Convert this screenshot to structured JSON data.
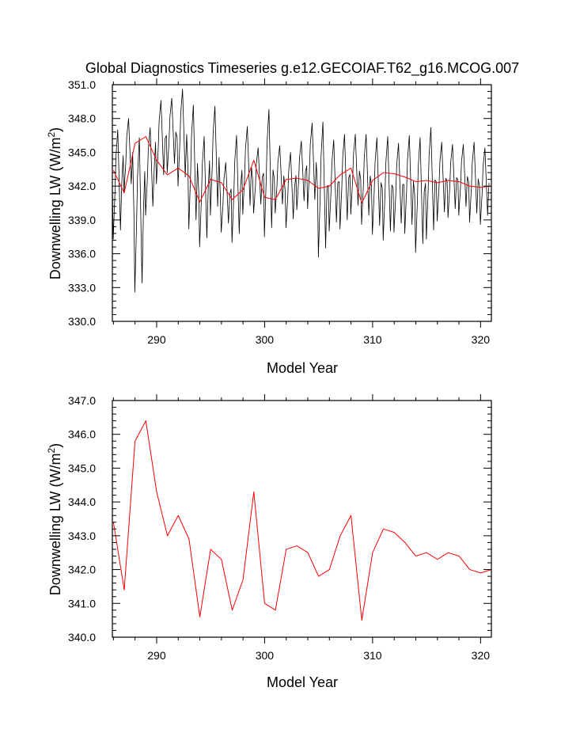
{
  "chart_data": [
    {
      "type": "line",
      "title": "Global Diagnostics Timeseries g.e12.GECOIAF.T62_g16.MCOG.007",
      "xlabel": "Model Year",
      "ylabel_main": "Downwelling LW (W/m",
      "ylabel_sup": "2",
      "ylabel_close": ")",
      "xlim": [
        285.9,
        321.0
      ],
      "ylim": [
        330.0,
        351.0
      ],
      "xticks": [
        "290",
        "300",
        "310",
        "320"
      ],
      "xtick_values": [
        290,
        300,
        310,
        320
      ],
      "yticks": [
        "330.0",
        "333.0",
        "336.0",
        "339.0",
        "342.0",
        "345.0",
        "348.0",
        "351.0"
      ],
      "ytick_values": [
        330,
        333,
        336,
        339,
        342,
        345,
        348,
        351
      ],
      "series": [
        {
          "color": "#000000",
          "monthly_maxima": [
            347.0,
            348.0,
            346.3,
            347.2,
            349.6,
            349.8,
            350.6,
            349.2,
            346.4,
            349.1,
            344.1,
            346.5,
            347.3,
            345.4,
            348.8,
            345.6,
            345.0,
            346.0,
            347.6,
            347.7,
            346.1,
            346.6,
            346.6,
            346.6,
            346.3,
            346.4,
            345.8,
            346.5,
            346.3,
            347.2,
            345.9,
            345.7,
            345.7,
            345.9,
            345.4
          ],
          "monthly_minima": [
            337.3,
            341.4,
            332.6,
            339.4,
            342.2,
            343.2,
            342.0,
            338.2,
            336.6,
            339.4,
            337.9,
            337.0,
            339.5,
            339.6,
            337.5,
            339.6,
            338.3,
            339.9,
            340.0,
            335.7,
            338.0,
            338.2,
            339.5,
            338.6,
            337.7,
            337.2,
            337.9,
            337.8,
            336.1,
            337.3,
            338.9,
            339.2,
            339.4,
            338.8,
            338.6
          ]
        },
        {
          "color": "#ff0000",
          "x": [
            286.0,
            287.0,
            288.0,
            289.0,
            290.0,
            291.0,
            292.0,
            293.0,
            294.0,
            295.0,
            296.0,
            297.0,
            298.0,
            299.0,
            300.0,
            301.0,
            302.0,
            303.0,
            304.0,
            305.0,
            306.0,
            307.0,
            308.0,
            309.0,
            310.0,
            311.0,
            312.0,
            313.0,
            314.0,
            315.0,
            316.0,
            317.0,
            318.0,
            319.0,
            320.0,
            321.0
          ],
          "values": [
            343.4,
            341.4,
            345.8,
            346.4,
            344.3,
            343.0,
            343.6,
            342.9,
            340.6,
            342.6,
            342.3,
            340.8,
            341.7,
            344.3,
            341.0,
            340.8,
            342.6,
            342.7,
            342.5,
            341.8,
            342.0,
            343.0,
            343.6,
            340.5,
            342.5,
            343.2,
            343.1,
            342.8,
            342.4,
            342.5,
            342.3,
            342.5,
            342.4,
            342.0,
            341.9,
            342.0
          ]
        }
      ]
    },
    {
      "type": "line",
      "xlabel": "Model Year",
      "ylabel_main": "Downwelling LW (W/m",
      "ylabel_sup": "2",
      "ylabel_close": ")",
      "xlim": [
        285.9,
        321.0
      ],
      "ylim": [
        340.0,
        347.0
      ],
      "xticks": [
        "290",
        "300",
        "310",
        "320"
      ],
      "xtick_values": [
        290,
        300,
        310,
        320
      ],
      "yticks": [
        "340.0",
        "341.0",
        "342.0",
        "343.0",
        "344.0",
        "345.0",
        "346.0",
        "347.0"
      ],
      "ytick_values": [
        340,
        341,
        342,
        343,
        344,
        345,
        346,
        347
      ],
      "series": [
        {
          "color": "#ff0000",
          "x": [
            286.0,
            287.0,
            288.0,
            289.0,
            290.0,
            291.0,
            292.0,
            293.0,
            294.0,
            295.0,
            296.0,
            297.0,
            298.0,
            299.0,
            300.0,
            301.0,
            302.0,
            303.0,
            304.0,
            305.0,
            306.0,
            307.0,
            308.0,
            309.0,
            310.0,
            311.0,
            312.0,
            313.0,
            314.0,
            315.0,
            316.0,
            317.0,
            318.0,
            319.0,
            320.0,
            321.0
          ],
          "values": [
            343.4,
            341.4,
            345.8,
            346.4,
            344.3,
            343.0,
            343.6,
            342.9,
            340.6,
            342.6,
            342.3,
            340.8,
            341.7,
            344.3,
            341.0,
            340.8,
            342.6,
            342.7,
            342.5,
            341.8,
            342.0,
            343.0,
            343.6,
            340.5,
            342.5,
            343.2,
            343.1,
            342.8,
            342.4,
            342.5,
            342.3,
            342.5,
            342.4,
            342.0,
            341.9,
            342.0
          ]
        }
      ]
    }
  ]
}
